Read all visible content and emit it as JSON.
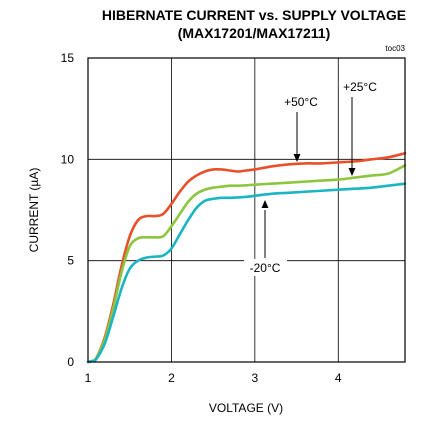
{
  "chart_data": {
    "type": "line",
    "title": "HIBERNATE CURRENT vs. SUPPLY VOLTAGE",
    "subtitle": "(MAX17201/MAX17211)",
    "figure_code": "toc03",
    "xlabel": "VOLTAGE (V)",
    "ylabel": "CURRENT (µA)",
    "xlim": [
      1,
      4.8
    ],
    "ylim": [
      0,
      15
    ],
    "x_ticks": [
      1,
      2,
      3,
      4
    ],
    "y_ticks": [
      0,
      5,
      10,
      15
    ],
    "grid": true,
    "series": [
      {
        "name": "+50°C",
        "color": "#e8502a",
        "x": [
          1.0,
          1.05,
          1.1,
          1.2,
          1.3,
          1.4,
          1.5,
          1.6,
          1.7,
          1.8,
          1.9,
          2.0,
          2.1,
          2.2,
          2.3,
          2.4,
          2.5,
          2.6,
          2.7,
          2.8,
          2.9,
          3.0,
          3.2,
          3.4,
          3.6,
          3.8,
          4.0,
          4.2,
          4.4,
          4.6,
          4.8
        ],
        "y": [
          0.0,
          0.05,
          0.2,
          1.2,
          2.8,
          4.7,
          6.2,
          7.0,
          7.2,
          7.2,
          7.3,
          7.8,
          8.4,
          8.9,
          9.2,
          9.4,
          9.5,
          9.5,
          9.45,
          9.4,
          9.45,
          9.5,
          9.65,
          9.75,
          9.8,
          9.8,
          9.85,
          9.9,
          10.0,
          10.1,
          10.3
        ]
      },
      {
        "name": "+25°C",
        "color": "#8cc63f",
        "x": [
          1.0,
          1.05,
          1.1,
          1.2,
          1.3,
          1.4,
          1.5,
          1.6,
          1.7,
          1.8,
          1.9,
          2.0,
          2.1,
          2.2,
          2.3,
          2.4,
          2.5,
          2.6,
          2.7,
          2.8,
          2.9,
          3.0,
          3.2,
          3.4,
          3.6,
          3.8,
          4.0,
          4.2,
          4.4,
          4.6,
          4.8
        ],
        "y": [
          0.0,
          0.05,
          0.2,
          1.1,
          2.6,
          4.4,
          5.7,
          6.1,
          6.15,
          6.15,
          6.2,
          6.7,
          7.3,
          7.9,
          8.3,
          8.5,
          8.6,
          8.65,
          8.7,
          8.7,
          8.72,
          8.75,
          8.8,
          8.85,
          8.9,
          8.95,
          9.0,
          9.1,
          9.2,
          9.3,
          9.7
        ]
      },
      {
        "name": "-20°C",
        "color": "#1ab5c4",
        "x": [
          1.0,
          1.05,
          1.1,
          1.2,
          1.3,
          1.4,
          1.5,
          1.6,
          1.7,
          1.8,
          1.9,
          2.0,
          2.1,
          2.2,
          2.3,
          2.4,
          2.5,
          2.6,
          2.7,
          2.8,
          2.9,
          3.0,
          3.2,
          3.4,
          3.6,
          3.8,
          4.0,
          4.2,
          4.4,
          4.6,
          4.8
        ],
        "y": [
          0.0,
          0.05,
          0.15,
          0.9,
          2.2,
          3.6,
          4.6,
          5.0,
          5.15,
          5.2,
          5.25,
          5.6,
          6.3,
          7.0,
          7.6,
          7.95,
          8.05,
          8.1,
          8.1,
          8.12,
          8.15,
          8.2,
          8.3,
          8.35,
          8.4,
          8.45,
          8.5,
          8.55,
          8.6,
          8.7,
          8.8
        ]
      }
    ],
    "annotations": [
      {
        "label": "+50°C"
      },
      {
        "label": "+25°C"
      },
      {
        "label": "-20°C"
      }
    ]
  }
}
